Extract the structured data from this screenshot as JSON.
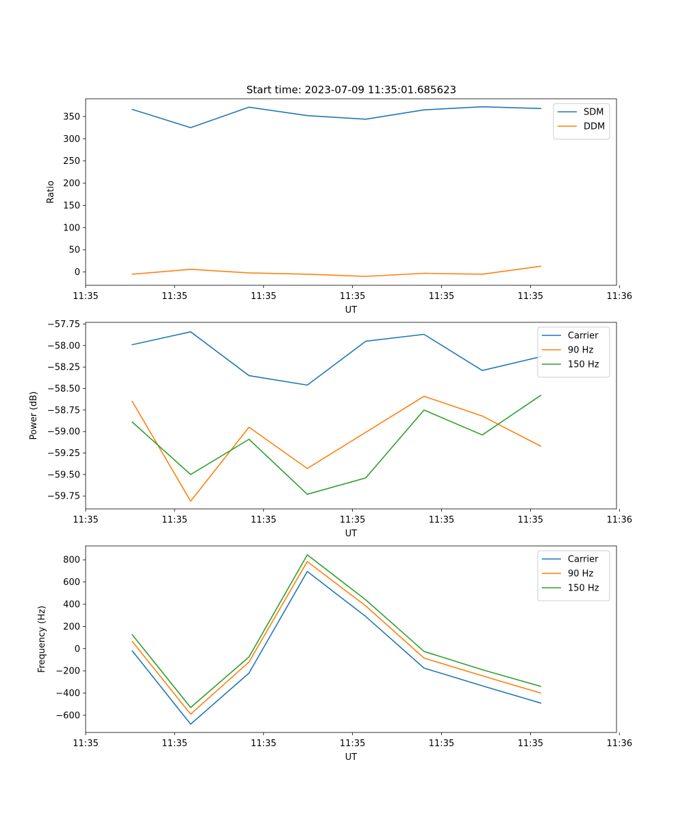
{
  "figure_title": "Start time: 2023-07-09 11:35:01.685623",
  "colors": {
    "blue": "#1f77b4",
    "orange": "#ff7f0e",
    "green": "#2ca02c"
  },
  "chart_data": [
    {
      "type": "line",
      "title": "Start time: 2023-07-09 11:35:01.685623",
      "xlabel": "UT",
      "ylabel": "Ratio",
      "x": [
        1,
        2,
        3,
        4,
        5,
        6,
        7,
        8
      ],
      "xlim": [
        0.2,
        9.3
      ],
      "xticks": [
        0.2,
        1.725,
        3.25,
        4.775,
        6.3,
        7.825,
        9.35
      ],
      "xtick_labels": [
        "11:35",
        "11:35",
        "11:35",
        "11:35",
        "11:35",
        "11:35",
        "11:36"
      ],
      "ylim": [
        -30,
        390
      ],
      "yticks": [
        0,
        50,
        100,
        150,
        200,
        250,
        300,
        350
      ],
      "ytick_labels": [
        "0",
        "50",
        "100",
        "150",
        "200",
        "250",
        "300",
        "350"
      ],
      "legend_position": "top-right",
      "series": [
        {
          "name": "SDM",
          "color": "#1f77b4",
          "values": [
            366,
            325,
            371,
            352,
            344,
            365,
            372,
            368
          ]
        },
        {
          "name": "DDM",
          "color": "#ff7f0e",
          "values": [
            -5,
            6,
            -2,
            -5,
            -10,
            -3,
            -5,
            13
          ]
        }
      ]
    },
    {
      "type": "line",
      "title": "",
      "xlabel": "UT",
      "ylabel": "Power (dB)",
      "x": [
        1,
        2,
        3,
        4,
        5,
        6,
        7,
        8
      ],
      "xlim": [
        0.2,
        9.3
      ],
      "xticks": [
        0.2,
        1.725,
        3.25,
        4.775,
        6.3,
        7.825,
        9.35
      ],
      "xtick_labels": [
        "11:35",
        "11:35",
        "11:35",
        "11:35",
        "11:35",
        "11:35",
        "11:36"
      ],
      "ylim": [
        -59.9,
        -57.73
      ],
      "yticks": [
        -59.75,
        -59.5,
        -59.25,
        -59.0,
        -58.75,
        -58.5,
        -58.25,
        -58.0,
        -57.75
      ],
      "ytick_labels": [
        "−59.75",
        "−59.50",
        "−59.25",
        "−59.00",
        "−58.75",
        "−58.50",
        "−58.25",
        "−58.00",
        "−57.75"
      ],
      "legend_position": "top-right",
      "series": [
        {
          "name": "Carrier",
          "color": "#1f77b4",
          "values": [
            -57.99,
            -57.84,
            -58.35,
            -58.46,
            -57.95,
            -57.87,
            -58.29,
            -58.13
          ]
        },
        {
          "name": "90 Hz",
          "color": "#ff7f0e",
          "values": [
            -58.65,
            -59.81,
            -58.95,
            -59.43,
            -59.01,
            -58.59,
            -58.82,
            -59.17
          ]
        },
        {
          "name": "150 Hz",
          "color": "#2ca02c",
          "values": [
            -58.89,
            -59.5,
            -59.09,
            -59.73,
            -59.54,
            -58.75,
            -59.04,
            -58.58
          ]
        }
      ]
    },
    {
      "type": "line",
      "title": "",
      "xlabel": "UT",
      "ylabel": "Frequency (Hz)",
      "x": [
        1,
        2,
        3,
        4,
        5,
        6,
        7,
        8
      ],
      "xlim": [
        0.2,
        9.3
      ],
      "xticks": [
        0.2,
        1.725,
        3.25,
        4.775,
        6.3,
        7.825,
        9.35
      ],
      "xtick_labels": [
        "11:35",
        "11:35",
        "11:35",
        "11:35",
        "11:35",
        "11:35",
        "11:36"
      ],
      "ylim": [
        -755,
        925
      ],
      "yticks": [
        -600,
        -400,
        -200,
        0,
        200,
        400,
        600,
        800
      ],
      "ytick_labels": [
        "−600",
        "−400",
        "−200",
        "0",
        "200",
        "400",
        "600",
        "800"
      ],
      "legend_position": "top-right",
      "series": [
        {
          "name": "Carrier",
          "color": "#1f77b4",
          "values": [
            -20,
            -680,
            -220,
            695,
            290,
            -175,
            -335,
            -490
          ]
        },
        {
          "name": "90 Hz",
          "color": "#ff7f0e",
          "values": [
            65,
            -590,
            -120,
            785,
            385,
            -85,
            -245,
            -400
          ]
        },
        {
          "name": "150 Hz",
          "color": "#2ca02c",
          "values": [
            125,
            -530,
            -75,
            845,
            440,
            -25,
            -190,
            -340
          ]
        }
      ]
    }
  ]
}
